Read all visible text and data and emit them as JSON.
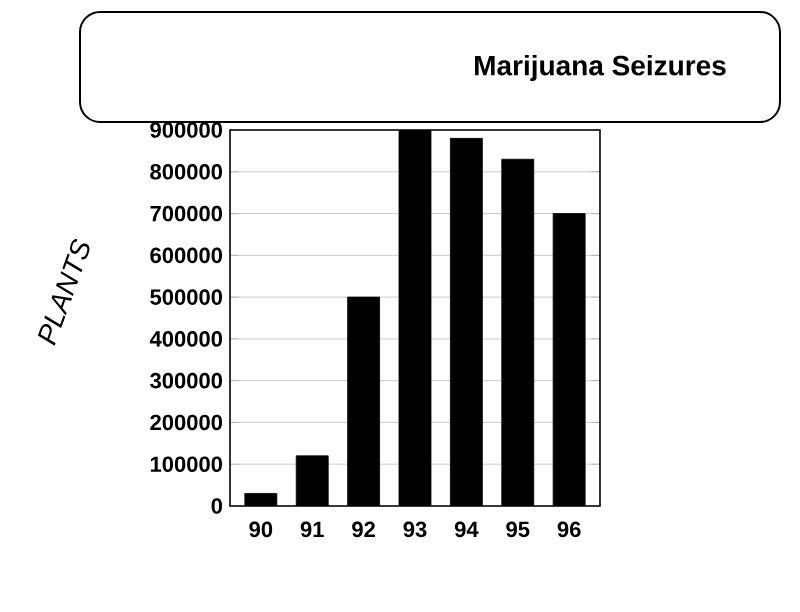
{
  "chart_data": {
    "type": "bar",
    "title": "Marijuana Seizures",
    "ylabel": "PLANTS",
    "categories": [
      "90",
      "91",
      "92",
      "93",
      "94",
      "95",
      "96"
    ],
    "values": [
      30000,
      120000,
      500000,
      900000,
      880000,
      830000,
      700000
    ],
    "color": "#000000",
    "ylim": [
      0,
      900000
    ],
    "yticks": [
      0,
      100000,
      200000,
      300000,
      400000,
      500000,
      600000,
      700000,
      800000,
      900000
    ],
    "grid": "y"
  }
}
